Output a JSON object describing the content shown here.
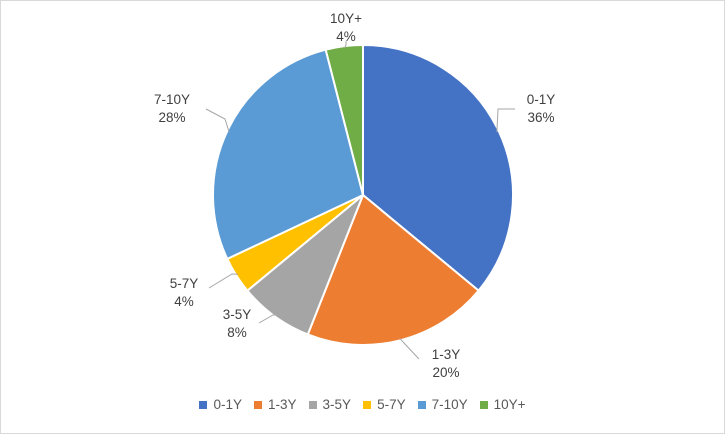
{
  "chart_data": {
    "type": "pie",
    "title": "",
    "categories": [
      "0-1Y",
      "1-3Y",
      "3-5Y",
      "5-7Y",
      "7-10Y",
      "10Y+"
    ],
    "values": [
      36,
      20,
      8,
      4,
      28,
      4
    ],
    "value_labels": [
      "36%",
      "20%",
      "8%",
      "4%",
      "28%",
      "4%"
    ],
    "colors": [
      "#4472C4",
      "#ED7D31",
      "#A5A5A5",
      "#FFC000",
      "#5B9BD5",
      "#70AD47"
    ],
    "start_angle_deg": 0,
    "direction": "clockwise",
    "legend_position": "bottom",
    "data_labels": "outside-with-leader-lines"
  }
}
